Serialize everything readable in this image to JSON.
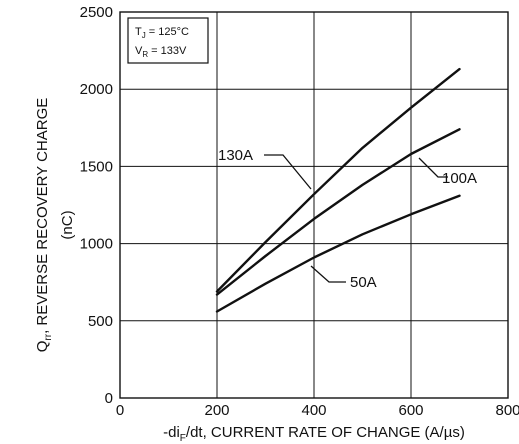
{
  "chart_data": {
    "type": "line",
    "title": "",
    "conditions": {
      "tj_main": "T",
      "tj_sub": "J",
      "tj_value": " = 125°C",
      "vr_main": "V",
      "vr_sub": "R",
      "vr_value": " = 133V"
    },
    "xlabel": {
      "prefix": "-di",
      "sub": "F",
      "suffix": "/dt, CURRENT RATE OF CHANGE (A/µs)"
    },
    "ylabel": {
      "line1_main": "Q",
      "line1_sub": "rr",
      "line1_suffix": ", REVERSE RECOVERY CHARGE",
      "line2": "(nC)"
    },
    "xlim": [
      0,
      800
    ],
    "ylim": [
      0,
      2500
    ],
    "xticks": [
      0,
      200,
      400,
      600,
      800
    ],
    "yticks": [
      0,
      500,
      1000,
      1500,
      2000,
      2500
    ],
    "grid": true,
    "series": [
      {
        "name": "130A",
        "x": [
          200,
          300,
          400,
          500,
          600,
          700
        ],
        "y": [
          690,
          1010,
          1320,
          1620,
          1880,
          2130
        ]
      },
      {
        "name": "100A",
        "x": [
          200,
          300,
          400,
          500,
          600,
          700
        ],
        "y": [
          670,
          920,
          1160,
          1380,
          1580,
          1740
        ]
      },
      {
        "name": "50A",
        "x": [
          200,
          300,
          400,
          500,
          600,
          700
        ],
        "y": [
          560,
          740,
          910,
          1060,
          1190,
          1310
        ]
      }
    ]
  }
}
